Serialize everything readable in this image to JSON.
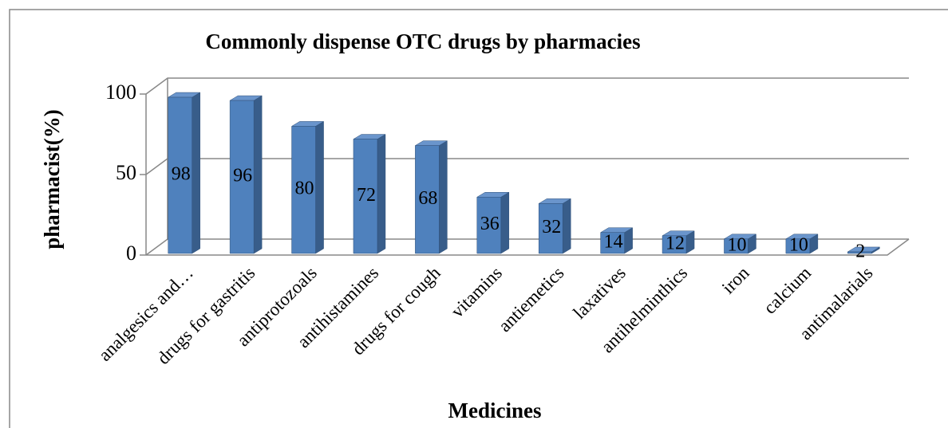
{
  "chart_data": {
    "type": "bar3d",
    "title": "Commonly dispense OTC drugs by pharmacies",
    "x_label": "Medicines",
    "y_label": "pharmacist(%)",
    "categories": [
      "analgesics and…",
      "drugs for gastritis",
      "antiprotozoals",
      "antihistamines",
      "drugs for cough",
      "vitamins",
      "antiemetics",
      "laxatives",
      "antihelminthics",
      "iron",
      "calcium",
      "antimalarials"
    ],
    "values": [
      98,
      96,
      80,
      72,
      68,
      36,
      32,
      14,
      12,
      10,
      10,
      2
    ],
    "color": "#4f81bd",
    "ylim": [
      0,
      100
    ],
    "yticks": [
      0,
      50,
      100
    ],
    "grid": true
  }
}
